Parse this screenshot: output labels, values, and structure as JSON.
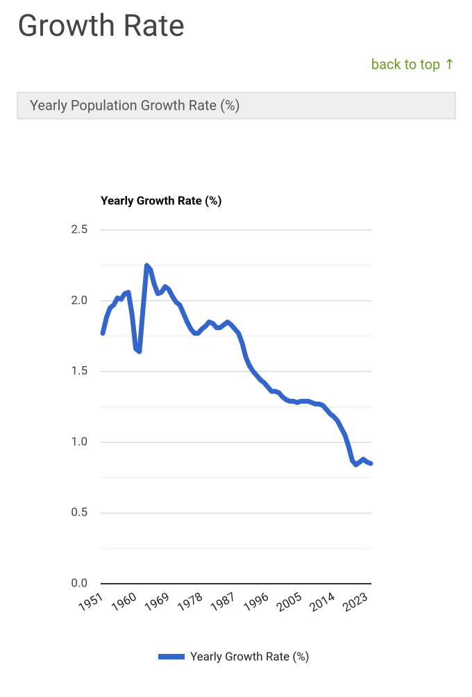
{
  "page": {
    "heading": "Growth Rate",
    "back_link": "back to top ↑",
    "section_title": "Yearly Population Growth Rate (%)"
  },
  "chart_data": {
    "type": "line",
    "title": "Yearly Growth Rate (%)",
    "x": [
      1951,
      1952,
      1953,
      1954,
      1955,
      1956,
      1957,
      1958,
      1959,
      1960,
      1961,
      1962,
      1963,
      1964,
      1965,
      1966,
      1967,
      1968,
      1969,
      1970,
      1971,
      1972,
      1973,
      1974,
      1975,
      1976,
      1977,
      1978,
      1979,
      1980,
      1981,
      1982,
      1983,
      1984,
      1985,
      1986,
      1987,
      1988,
      1989,
      1990,
      1991,
      1992,
      1993,
      1994,
      1995,
      1996,
      1997,
      1998,
      1999,
      2000,
      2001,
      2002,
      2003,
      2004,
      2005,
      2006,
      2007,
      2008,
      2009,
      2010,
      2011,
      2012,
      2013,
      2014,
      2015,
      2016,
      2017,
      2018,
      2019,
      2020,
      2021,
      2022,
      2023,
      2024
    ],
    "series": [
      {
        "name": "Yearly Growth Rate (%)",
        "color": "#3366cc",
        "values": [
          1.77,
          1.88,
          1.95,
          1.97,
          2.02,
          2.01,
          2.05,
          2.06,
          1.9,
          1.66,
          1.64,
          1.95,
          2.25,
          2.22,
          2.12,
          2.05,
          2.06,
          2.1,
          2.08,
          2.03,
          1.99,
          1.97,
          1.91,
          1.85,
          1.8,
          1.77,
          1.77,
          1.8,
          1.82,
          1.85,
          1.84,
          1.81,
          1.81,
          1.83,
          1.85,
          1.83,
          1.8,
          1.77,
          1.7,
          1.6,
          1.54,
          1.5,
          1.47,
          1.44,
          1.42,
          1.39,
          1.36,
          1.36,
          1.35,
          1.32,
          1.3,
          1.29,
          1.29,
          1.28,
          1.29,
          1.29,
          1.29,
          1.28,
          1.27,
          1.27,
          1.26,
          1.23,
          1.2,
          1.18,
          1.15,
          1.1,
          1.05,
          0.97,
          0.87,
          0.84,
          0.86,
          0.88,
          0.86,
          0.85
        ]
      }
    ],
    "xlim": [
      1951,
      2024
    ],
    "xticks": [
      1951,
      1960,
      1969,
      1978,
      1987,
      1996,
      2005,
      2014,
      2023
    ],
    "ylim": [
      0,
      2.5
    ],
    "yticks": [
      {
        "value": 0,
        "label": "0.0"
      },
      {
        "value": 0.5,
        "label": "0.5"
      },
      {
        "value": 1,
        "label": "1.0"
      },
      {
        "value": 1.5,
        "label": "1.5"
      },
      {
        "value": 2,
        "label": "2.0"
      },
      {
        "value": 2.5,
        "label": "2.5"
      }
    ],
    "minor_yticks": [
      0.25,
      0.75,
      1.25,
      1.75,
      2.25
    ],
    "grid": true,
    "legend": "bottom"
  }
}
